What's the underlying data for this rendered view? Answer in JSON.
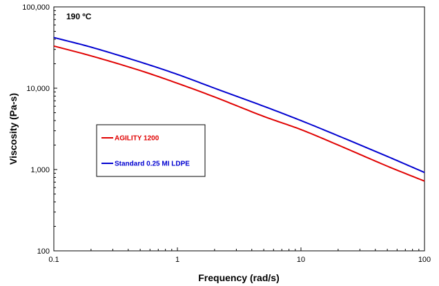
{
  "chart_data": {
    "type": "line",
    "xlabel": "Frequency (rad/s)",
    "ylabel": "Viscosity (Pa-s)",
    "x_scale": "log",
    "y_scale": "log",
    "xlim": [
      0.1,
      100
    ],
    "ylim": [
      100,
      100000
    ],
    "x_ticks": [
      0.1,
      1,
      10,
      100
    ],
    "x_tick_labels": [
      "0.1",
      "1",
      "10",
      "100"
    ],
    "y_ticks": [
      100,
      1000,
      10000,
      100000
    ],
    "y_tick_labels": [
      "100",
      "1,000",
      "10,000",
      "100,000"
    ],
    "grid": false,
    "annotation": "190 ºC",
    "legend_position": "center-left",
    "series": [
      {
        "name": "AGILITY 1200",
        "color": "#e00000",
        "x": [
          0.1,
          0.2,
          0.5,
          1,
          2,
          5,
          10,
          20,
          50,
          100
        ],
        "values": [
          33000,
          25000,
          16500,
          11500,
          7800,
          4500,
          3100,
          2000,
          1100,
          720
        ]
      },
      {
        "name": "Standard 0.25 MI LDPE",
        "color": "#0000d0",
        "x": [
          0.1,
          0.2,
          0.5,
          1,
          2,
          5,
          10,
          20,
          50,
          100
        ],
        "values": [
          42000,
          32000,
          21000,
          14800,
          10000,
          6000,
          4000,
          2600,
          1450,
          920
        ]
      }
    ]
  }
}
